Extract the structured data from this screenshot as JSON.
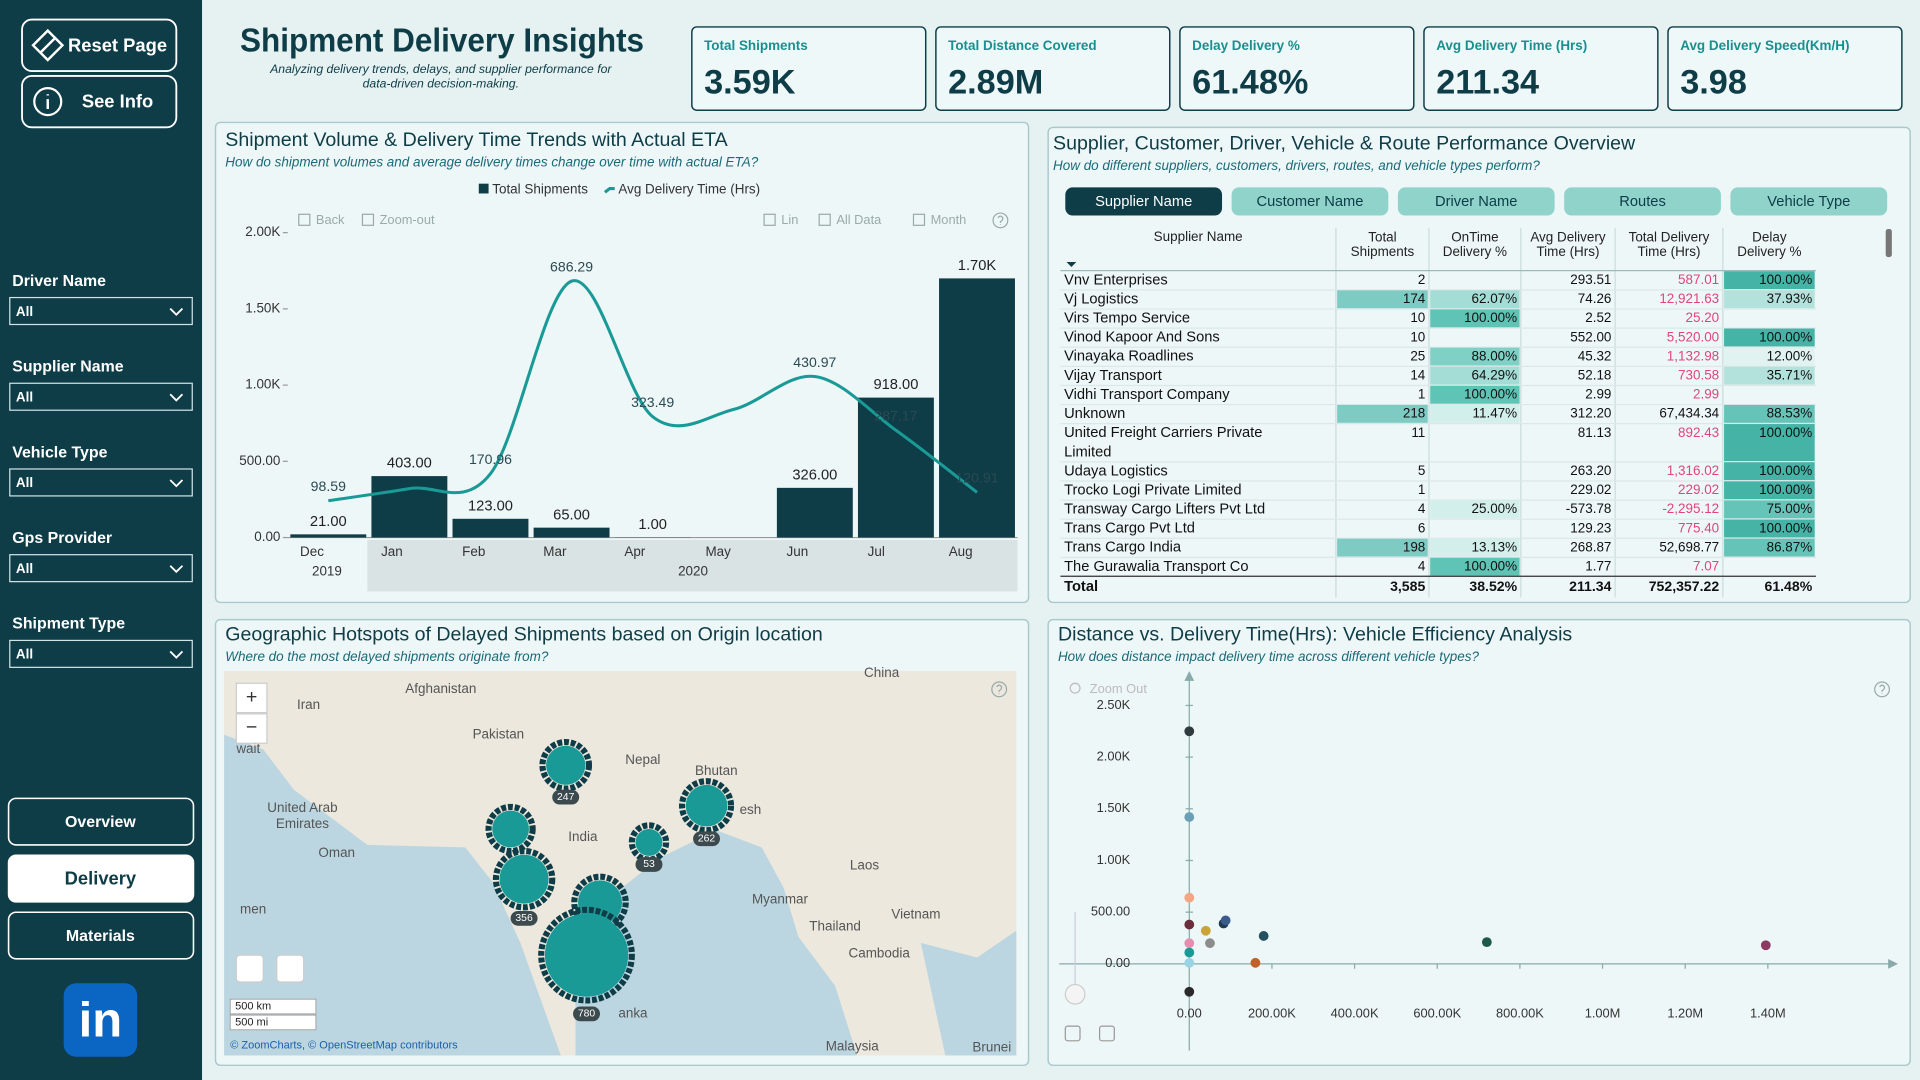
{
  "sidebar": {
    "buttons": [
      "Reset Page",
      "See Info"
    ],
    "filters": [
      {
        "label": "Driver Name",
        "value": "All"
      },
      {
        "label": "Supplier Name",
        "value": "All"
      },
      {
        "label": "Vehicle Type",
        "value": "All"
      },
      {
        "label": "Gps Provider",
        "value": "All"
      },
      {
        "label": "Shipment Type",
        "value": "All"
      }
    ],
    "nav": [
      "Overview",
      "Delivery",
      "Materials"
    ],
    "active_nav": "Delivery",
    "logo": "in"
  },
  "header": {
    "title": "Shipment Delivery Insights",
    "subtitle_lines": [
      "Analyzing delivery trends, delays, and supplier performance for",
      "data-driven decision-making."
    ]
  },
  "kpis": [
    {
      "label": "Total Shipments",
      "value": "3.59K"
    },
    {
      "label": "Total Distance Covered",
      "value": "2.89M"
    },
    {
      "label": "Delay Delivery %",
      "value": "61.48%"
    },
    {
      "label": "Avg Delivery Time (Hrs)",
      "value": "211.34"
    },
    {
      "label": "Avg Delivery Speed(Km/H)",
      "value": "3.98"
    }
  ],
  "chart_data": [
    {
      "type": "combo",
      "title": "Shipment Volume & Delivery Time Trends with Actual ETA",
      "subtitle": "How do shipment volumes and average delivery times change over time with actual ETA?",
      "toolbar": [
        "Back",
        "Zoom-out",
        "Lin",
        "All Data",
        "Month"
      ],
      "categories": [
        "Dec",
        "Jan",
        "Feb",
        "Mar",
        "Apr",
        "May",
        "Jun",
        "Jul",
        "Aug"
      ],
      "x_groups": [
        "2019",
        "2020"
      ],
      "series": [
        {
          "name": "Total Shipments",
          "type": "bar",
          "color": "#0e3c47",
          "values": [
            21,
            403,
            123,
            65,
            1,
            null,
            326,
            918,
            1700
          ],
          "value_labels": [
            "21.00",
            "403.00",
            "123.00",
            "65.00",
            "1.00",
            null,
            "326.00",
            "918.00",
            "1.70K"
          ]
        },
        {
          "name": "Avg Delivery Time (Hrs)",
          "type": "line",
          "axis": "y2",
          "color": "#1a9a96",
          "values": [
            98.59,
            131,
            170.96,
            686.29,
            323.49,
            343,
            430.97,
            287.17,
            120.91
          ],
          "value_labels": [
            "98.59",
            null,
            "170.96",
            "686.29",
            "323.49",
            null,
            "430.97",
            "287.17",
            "120.91"
          ]
        }
      ],
      "ylim": [
        0,
        2000
      ],
      "yticks": [
        {
          "value": 0,
          "label": "0.00"
        },
        {
          "value": 500,
          "label": "500.00"
        },
        {
          "value": 1000,
          "label": "1.00K"
        },
        {
          "value": 1500,
          "label": "1.50K"
        },
        {
          "value": 2000,
          "label": "2.00K"
        }
      ],
      "y2lim": [
        0,
        816
      ]
    },
    {
      "type": "scatter",
      "title": "Distance vs. Delivery Time(Hrs): Vehicle Efficiency Analysis",
      "subtitle": "How does distance impact delivery time across different vehicle types?",
      "toolbar": [
        "Zoom Out"
      ],
      "x": [
        0,
        0,
        0,
        0,
        40000,
        50000,
        0,
        0,
        83000,
        88000,
        180000,
        160000,
        0,
        720000,
        1395000,
        0
      ],
      "values": [
        2250,
        1420,
        640,
        380,
        320,
        200,
        200,
        110,
        390,
        420,
        270,
        10,
        -270,
        210,
        180,
        10
      ],
      "colors": [
        "#2f3b3f",
        "#6a9fb5",
        "#f4a582",
        "#6b2d3b",
        "#c9a43a",
        "#8c8c8c",
        "#e58fb0",
        "#1a9a96",
        "#1f3b4d",
        "#3b5b8c",
        "#24505f",
        "#c0602a",
        "#2a2a2a",
        "#1e5a4a",
        "#8b3a62",
        "#9ad3e6"
      ],
      "xlim": [
        -300000,
        1700000
      ],
      "xticks": [
        {
          "value": 0,
          "label": "0.00"
        },
        {
          "value": 200000,
          "label": "200.00K"
        },
        {
          "value": 400000,
          "label": "400.00K"
        },
        {
          "value": 600000,
          "label": "600.00K"
        },
        {
          "value": 800000,
          "label": "800.00K"
        },
        {
          "value": 1000000,
          "label": "1.00M"
        },
        {
          "value": 1200000,
          "label": "1.20M"
        },
        {
          "value": 1400000,
          "label": "1.40M"
        }
      ],
      "ylim": [
        -330,
        2750
      ],
      "yticks": [
        {
          "value": 0,
          "label": "0.00"
        },
        {
          "value": 500,
          "label": "500.00"
        },
        {
          "value": 1000,
          "label": "1.00K"
        },
        {
          "value": 1500,
          "label": "1.50K"
        },
        {
          "value": 2000,
          "label": "2.00K"
        },
        {
          "value": 2500,
          "label": "2.50K"
        }
      ]
    }
  ],
  "table_panel": {
    "title": "Supplier, Customer, Driver, Vehicle & Route Performance Overview",
    "subtitle": "How do different suppliers, customers, drivers, routes, and vehicle types perform?",
    "tabs": [
      "Supplier Name",
      "Customer Name",
      "Driver Name",
      "Routes",
      "Vehicle Type"
    ],
    "active_tab": "Supplier Name",
    "columns": [
      "Supplier Name",
      "Total Shipments",
      "OnTime Delivery %",
      "Avg Delivery Time (Hrs)",
      "Total Delivery Time (Hrs)",
      "Delay Delivery %"
    ],
    "rows": [
      [
        "Vnv Enterprises",
        "2",
        null,
        "293.51",
        "587.01",
        "100.00%"
      ],
      [
        "Vj Logistics",
        "174",
        "62.07%",
        "74.26",
        "12,921.63",
        "37.93%"
      ],
      [
        "Virs Tempo Service",
        "10",
        "100.00%",
        "2.52",
        "25.20",
        null
      ],
      [
        "Vinod Kapoor And Sons",
        "10",
        null,
        "552.00",
        "5,520.00",
        "100.00%"
      ],
      [
        "Vinayaka Roadlines",
        "25",
        "88.00%",
        "45.32",
        "1,132.98",
        "12.00%"
      ],
      [
        "Vijay Transport",
        "14",
        "64.29%",
        "52.18",
        "730.58",
        "35.71%"
      ],
      [
        "Vidhi Transport Company",
        "1",
        "100.00%",
        "2.99",
        "2.99",
        null
      ],
      [
        "Unknown",
        "218",
        "11.47%",
        "312.20",
        "67,434.34",
        "88.53%"
      ],
      [
        "United Freight Carriers Private Limited",
        "11",
        null,
        "81.13",
        "892.43",
        "100.00%"
      ],
      [
        "Udaya Logistics",
        "5",
        null,
        "263.20",
        "1,316.02",
        "100.00%"
      ],
      [
        "Trocko Logi Private Limited",
        "1",
        null,
        "229.02",
        "229.02",
        "100.00%"
      ],
      [
        "Transway Cargo Lifters Pvt Ltd",
        "4",
        "25.00%",
        "-573.78",
        "-2,295.12",
        "75.00%"
      ],
      [
        "Trans Cargo Pvt Ltd",
        "6",
        null,
        "129.23",
        "775.40",
        "100.00%"
      ],
      [
        "Trans Cargo India",
        "198",
        "13.13%",
        "268.87",
        "52,698.77",
        "86.87%"
      ],
      [
        "The Gurawalia Transport Co",
        "4",
        "100.00%",
        "1.77",
        "7.07",
        null
      ]
    ],
    "total": [
      "Total",
      "3,585",
      "38.52%",
      "211.34",
      "752,357.22",
      "61.48%"
    ]
  },
  "map": {
    "title": "Geographic Hotspots of Delayed Shipments based on Origin location",
    "subtitle": "Where do the most delayed shipments originate from?",
    "places": [
      "Afghanistan",
      "Iran",
      "Pakistan",
      "Nepal",
      "Bhutan",
      "China",
      "United Arab Emirates",
      "Oman",
      "India",
      "Laos",
      "Myanmar",
      "Thailand",
      "Vietnam",
      "Cambodia",
      "Malaysia",
      "Brunei",
      "wait",
      "esh",
      "men",
      "anka"
    ],
    "clusters": [
      247,
      null,
      356,
      262,
      53,
      292,
      780
    ],
    "zoom": [
      "+",
      "−"
    ],
    "scale": [
      "500 km",
      "500 mi"
    ],
    "attribution": "© ZoomCharts, © OpenStreetMap contributors"
  }
}
